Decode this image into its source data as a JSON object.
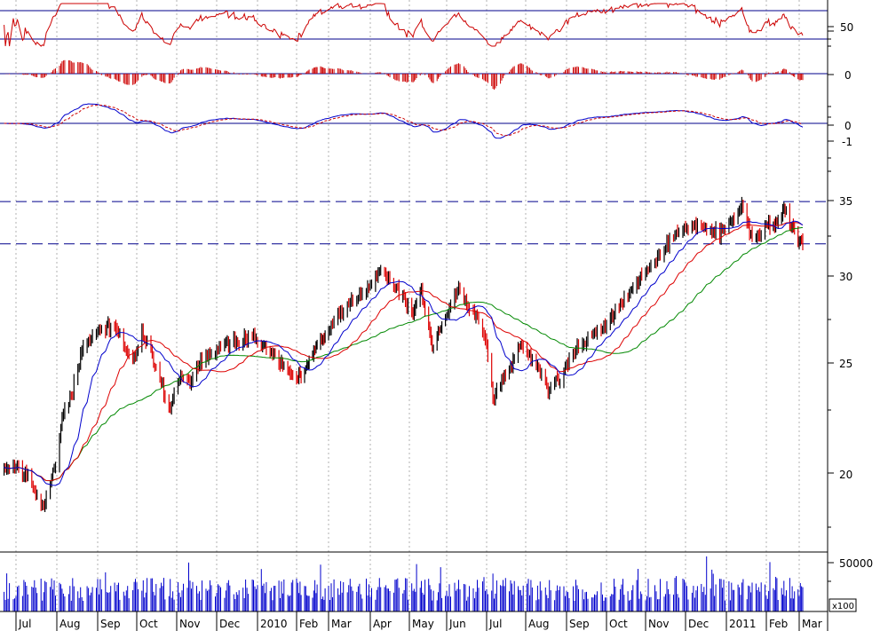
{
  "colors": {
    "background": "#ffffff",
    "candle_up": "#000000",
    "candle_down": "#dd0000",
    "ma_short": "#0000cc",
    "ma_mid": "#dd0000",
    "ma_long": "#008800",
    "volume": "#0000cc",
    "rsi": "#cc0000",
    "hist": "#cc0000",
    "macd": "#0000cc",
    "signal": "#cc0000",
    "guides": "#00008b",
    "grid": "#b0b0b0"
  },
  "chart_data": {
    "type": "candlestick",
    "scale": "log",
    "x_axis": {
      "months": [
        "Jul",
        "Aug",
        "Sep",
        "Oct",
        "Nov",
        "Dec",
        "2010",
        "Feb",
        "Mar",
        "Apr",
        "May",
        "Jun",
        "Jul",
        "Aug",
        "Sep",
        "Oct",
        "Nov",
        "Dec",
        "2011",
        "Feb",
        "Mar"
      ]
    },
    "panels": {
      "rsi": {
        "ticks": [
          "50"
        ],
        "reference_levels": [
          70,
          30
        ],
        "range": [
          20,
          80
        ]
      },
      "macd_histogram": {
        "ticks": [
          "0"
        ]
      },
      "macd": {
        "ticks": [
          "0",
          "-1"
        ]
      },
      "price": {
        "ticks": [
          "35",
          "30",
          "25",
          "20"
        ],
        "ylim": [
          16.5,
          38.5
        ],
        "reference_levels": [
          35.8,
          32.6
        ],
        "series": [
          {
            "kind": "close_approx",
            "x": [
              "2009-07-01",
              "2009-07-10",
              "2009-07-15",
              "2009-07-22",
              "2009-07-31",
              "2009-08-05",
              "2009-08-12",
              "2009-08-20",
              "2009-08-31",
              "2009-09-10",
              "2009-09-18",
              "2009-09-28",
              "2009-10-05",
              "2009-10-12",
              "2009-10-20",
              "2009-10-27",
              "2009-11-04",
              "2009-11-10",
              "2009-11-18",
              "2009-12-01",
              "2009-12-15",
              "2009-12-28",
              "2010-01-08",
              "2010-01-19",
              "2010-01-28",
              "2010-02-05",
              "2010-02-15",
              "2010-03-01",
              "2010-03-15",
              "2010-03-31",
              "2010-04-09",
              "2010-04-16",
              "2010-04-26",
              "2010-05-04",
              "2010-05-10",
              "2010-05-20",
              "2010-05-25",
              "2010-06-01",
              "2010-06-10",
              "2010-06-22",
              "2010-06-30",
              "2010-07-06",
              "2010-07-13",
              "2010-07-20",
              "2010-07-28",
              "2010-08-09",
              "2010-08-18",
              "2010-08-27",
              "2010-09-08",
              "2010-09-20",
              "2010-10-01",
              "2010-10-15",
              "2010-10-29",
              "2010-11-12",
              "2010-11-26",
              "2010-12-10",
              "2010-12-24",
              "2011-01-05",
              "2011-01-14",
              "2011-01-19",
              "2011-01-25",
              "2011-02-01",
              "2011-02-09",
              "2011-02-16",
              "2011-02-22",
              "2011-02-28",
              "2011-03-04"
            ],
            "y": [
              19.8,
              19.5,
              18.8,
              18.2,
              20.0,
              22.2,
              23.4,
              25.8,
              26.8,
              27.2,
              26.5,
              25.0,
              26.8,
              25.5,
              24.0,
              22.6,
              24.5,
              23.8,
              25.2,
              25.8,
              26.3,
              26.5,
              25.8,
              25.2,
              24.5,
              24.2,
              25.6,
              27.0,
              28.5,
              29.8,
              30.8,
              30.2,
              29.0,
              27.8,
              29.5,
              26.0,
              26.8,
              27.8,
              29.5,
              27.8,
              26.5,
              23.2,
              24.2,
              24.8,
              26.0,
              25.0,
              23.8,
              24.3,
              25.8,
              26.7,
              27.3,
              28.8,
              30.3,
              32.0,
              33.5,
              34.0,
              33.4,
              34.2,
              35.6,
              33.4,
              33.0,
              33.8,
              34.3,
              35.3,
              34.0,
              33.0,
              32.8
            ]
          },
          {
            "kind": "ma_short"
          },
          {
            "kind": "ma_mid"
          },
          {
            "kind": "ma_long"
          }
        ]
      },
      "volume": {
        "ticks": [
          "50000"
        ],
        "multiplier_label": "x100"
      }
    }
  }
}
